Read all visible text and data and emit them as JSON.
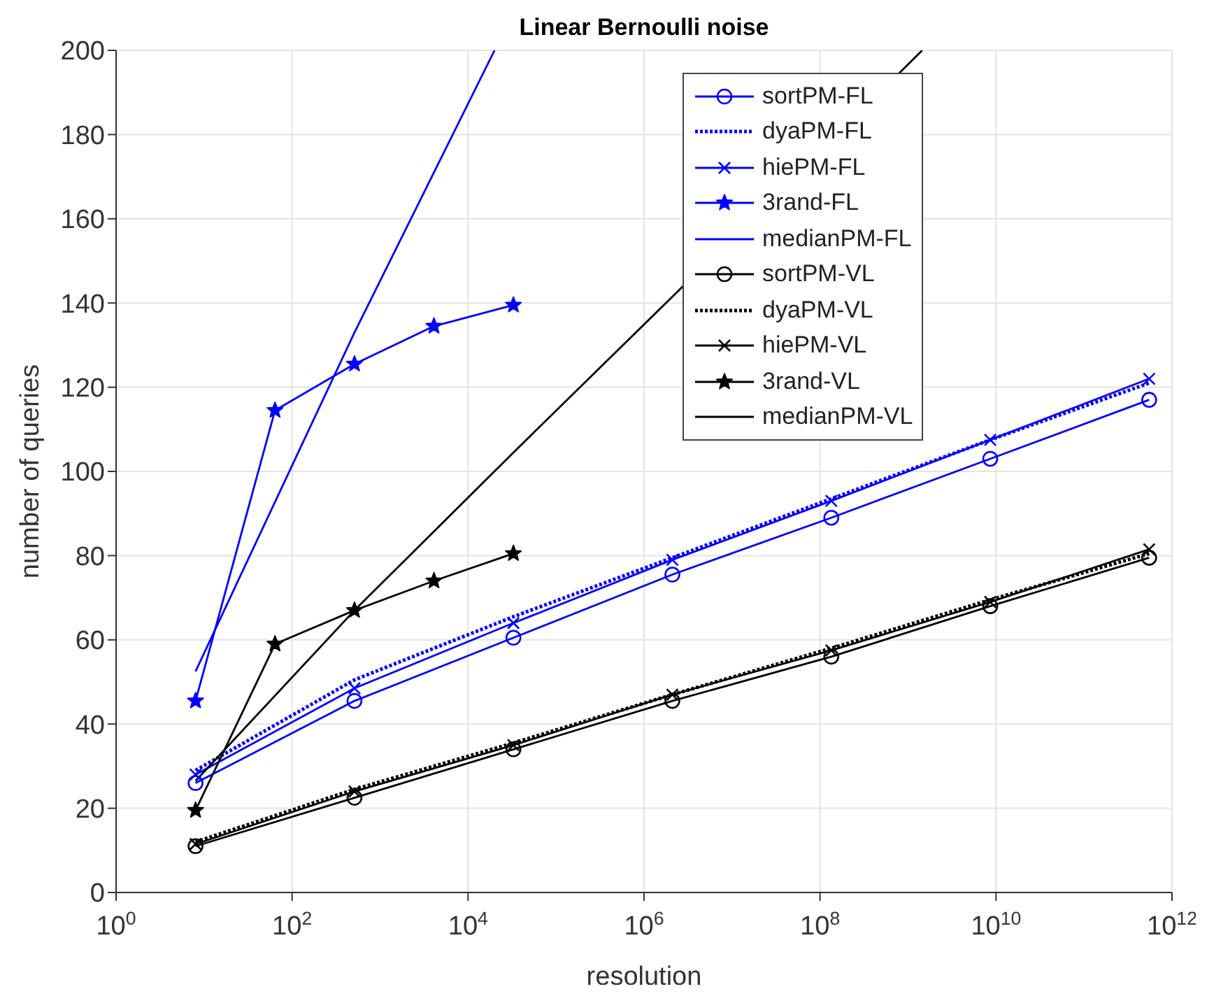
{
  "chart_data": {
    "type": "line",
    "title": "Linear Bernoulli noise",
    "xlabel": "resolution",
    "ylabel": "number of queries",
    "log": "x",
    "grid": true,
    "legend": "top right",
    "xlim": [
      1,
      1000000000000
    ],
    "xticks": [
      {
        "value": 1,
        "label": "10$^{0}$"
      },
      {
        "value": 100,
        "label": "10$^{2}$"
      },
      {
        "value": 10000,
        "label": "10$^{4}$"
      },
      {
        "value": 1000000,
        "label": "10$^{6}$"
      },
      {
        "value": 100000000,
        "label": "10$^{8}$"
      },
      {
        "value": 10000000000,
        "label": "10$^{10}$"
      },
      {
        "value": 1000000000000,
        "label": "10$^{12}$"
      }
    ],
    "ylim": [
      0,
      200
    ],
    "yticks": [
      0,
      20,
      40,
      60,
      80,
      100,
      120,
      140,
      160,
      180,
      200
    ],
    "series": [
      {
        "name": "sortPM-FL",
        "color": "#0000ff",
        "marker": "circle",
        "line_style": "solid",
        "x": [
          8,
          512,
          32768,
          2097152,
          134217728,
          8589934592,
          549755813888
        ],
        "values": [
          26,
          45.5,
          60.5,
          75.5,
          89,
          103,
          117
        ]
      },
      {
        "name": "dyaPM-FL",
        "color": "#0000ff",
        "marker": "none",
        "line_style": "dotted",
        "x": [
          8,
          512,
          32768,
          2097152,
          134217728,
          8589934592,
          549755813888
        ],
        "values": [
          29,
          50.5,
          65.5,
          79.5,
          93.5,
          107.5,
          121
        ]
      },
      {
        "name": "hiePM-FL",
        "color": "#0000ff",
        "marker": "cross",
        "line_style": "solid",
        "x": [
          8,
          512,
          32768,
          2097152,
          134217728,
          8589934592,
          549755813888
        ],
        "values": [
          28,
          48.5,
          64,
          79,
          93,
          107.5,
          122
        ]
      },
      {
        "name": "3rand-FL",
        "color": "#0000ff",
        "marker": "star",
        "line_style": "solid",
        "x": [
          8,
          64,
          512,
          4096,
          32768
        ],
        "values": [
          45.5,
          114.5,
          125.5,
          134.5,
          139.5
        ]
      },
      {
        "name": "medianPM-FL",
        "color": "#0000ff",
        "marker": "none",
        "line_style": "solid",
        "x": [
          8,
          512,
          20000
        ],
        "values": [
          52.5,
          133,
          200
        ]
      },
      {
        "name": "sortPM-VL",
        "color": "#000000",
        "marker": "circle",
        "line_style": "solid",
        "x": [
          8,
          512,
          32768,
          2097152,
          134217728,
          8589934592,
          549755813888
        ],
        "values": [
          11,
          22.5,
          34,
          45.5,
          56,
          68,
          79.5
        ]
      },
      {
        "name": "dyaPM-VL",
        "color": "#000000",
        "marker": "none",
        "line_style": "dotted",
        "x": [
          8,
          512,
          32768,
          2097152,
          134217728,
          8589934592,
          549755813888
        ],
        "values": [
          12,
          24.5,
          35.5,
          47,
          58,
          69.5,
          80.5
        ]
      },
      {
        "name": "hiePM-VL",
        "color": "#000000",
        "marker": "cross",
        "line_style": "solid",
        "x": [
          8,
          512,
          32768,
          2097152,
          134217728,
          8589934592,
          549755813888
        ],
        "values": [
          11.5,
          24,
          35,
          47,
          57.5,
          69,
          81.5
        ]
      },
      {
        "name": "3rand-VL",
        "color": "#000000",
        "marker": "star",
        "line_style": "solid",
        "x": [
          8,
          64,
          512,
          4096,
          32768
        ],
        "values": [
          19.5,
          59,
          67,
          74,
          80.5
        ]
      },
      {
        "name": "medianPM-VL",
        "color": "#000000",
        "marker": "none",
        "line_style": "solid",
        "x": [
          8,
          512,
          32768,
          2097152,
          1450000000
        ],
        "values": [
          26.5,
          67,
          104.5,
          141.5,
          200
        ]
      }
    ]
  }
}
